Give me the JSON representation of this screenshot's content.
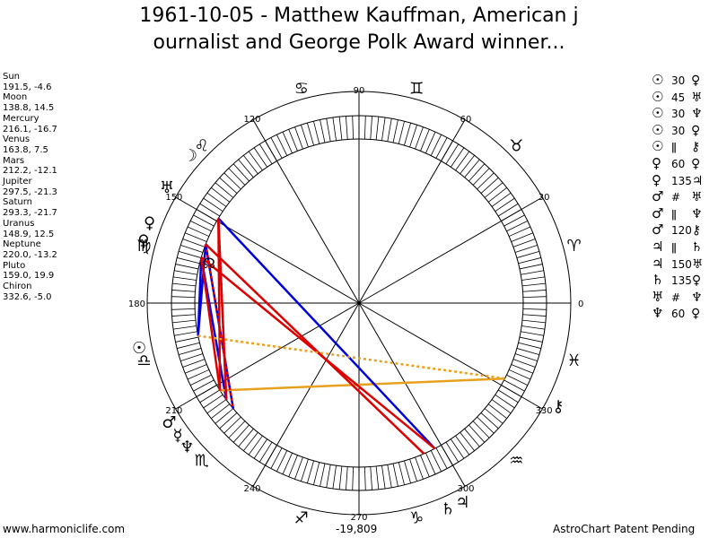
{
  "header": {
    "title_line1": "1961-10-05 - Matthew Kauffman, American j",
    "title_line2": "ournalist and George Polk Award winner..."
  },
  "planets": [
    {
      "name": "Sun",
      "coords": "191.5, -4.6"
    },
    {
      "name": "Moon",
      "coords": "138.8, 14.5"
    },
    {
      "name": "Mercury",
      "coords": "216.1, -16.7"
    },
    {
      "name": "Venus",
      "coords": "163.8, 7.5"
    },
    {
      "name": "Mars",
      "coords": "212.2, -12.1"
    },
    {
      "name": "Jupiter",
      "coords": "297.5, -21.3"
    },
    {
      "name": "Saturn",
      "coords": "293.3, -21.7"
    },
    {
      "name": "Uranus",
      "coords": "148.9, 12.5"
    },
    {
      "name": "Neptune",
      "coords": "220.0, -13.2"
    },
    {
      "name": "Pluto",
      "coords": "159.0, 19.9"
    },
    {
      "name": "Chiron",
      "coords": "332.6, -5.0"
    }
  ],
  "aspects": [
    {
      "p1": "☉",
      "aspect": "30",
      "p2": "♀"
    },
    {
      "p1": "☉",
      "aspect": "45",
      "p2": "♅"
    },
    {
      "p1": "☉",
      "aspect": "30",
      "p2": "♆"
    },
    {
      "p1": "☉",
      "aspect": "30",
      "p2": "♀"
    },
    {
      "p1": "☉",
      "aspect": "ǁ",
      "p2": "⚷"
    },
    {
      "p1": "♀",
      "aspect": "60",
      "p2": "♀"
    },
    {
      "p1": "♀",
      "aspect": "135",
      "p2": "♃"
    },
    {
      "p1": "♂",
      "aspect": "#",
      "p2": "♅"
    },
    {
      "p1": "♂",
      "aspect": "ǁ",
      "p2": "♆"
    },
    {
      "p1": "♂",
      "aspect": "120",
      "p2": "⚷"
    },
    {
      "p1": "♃",
      "aspect": "ǁ",
      "p2": "♄"
    },
    {
      "p1": "♃",
      "aspect": "150",
      "p2": "♅"
    },
    {
      "p1": "♄",
      "aspect": "135",
      "p2": "♀"
    },
    {
      "p1": "♅",
      "aspect": "#",
      "p2": "♆"
    },
    {
      "p1": "♆",
      "aspect": "60",
      "p2": "♀"
    }
  ],
  "wheel": {
    "degree_labels": [
      "0",
      "30",
      "60",
      "90",
      "120",
      "150",
      "180",
      "210",
      "240",
      "270",
      "300",
      "330"
    ],
    "zodiac_signs": [
      {
        "name": "Aries",
        "glyph": "♈"
      },
      {
        "name": "Taurus",
        "glyph": "♉"
      },
      {
        "name": "Gemini",
        "glyph": "♊"
      },
      {
        "name": "Cancer",
        "glyph": "♋"
      },
      {
        "name": "Leo",
        "glyph": "♌"
      },
      {
        "name": "Virgo",
        "glyph": "♍"
      },
      {
        "name": "Libra",
        "glyph": "♎"
      },
      {
        "name": "Scorpio",
        "glyph": "♏"
      },
      {
        "name": "Sagittarius",
        "glyph": "♐"
      },
      {
        "name": "Capricorn",
        "glyph": "♑"
      },
      {
        "name": "Aquarius",
        "glyph": "♒"
      },
      {
        "name": "Pisces",
        "glyph": "♓"
      }
    ],
    "planet_glyphs": [
      {
        "name": "Sun",
        "glyph": "☉",
        "longitude": 191.5
      },
      {
        "name": "Moon",
        "glyph": "☽",
        "longitude": 138.8
      },
      {
        "name": "Mercury",
        "glyph": "☿",
        "longitude": 216.1
      },
      {
        "name": "Venus",
        "glyph": "♀",
        "longitude": 163.8
      },
      {
        "name": "Mars",
        "glyph": "♂",
        "longitude": 212.2
      },
      {
        "name": "Jupiter",
        "glyph": "♃",
        "longitude": 297.5
      },
      {
        "name": "Saturn",
        "glyph": "♄",
        "longitude": 293.3
      },
      {
        "name": "Uranus",
        "glyph": "♅",
        "longitude": 148.9
      },
      {
        "name": "Neptune",
        "glyph": "♆",
        "longitude": 220.0
      },
      {
        "name": "Pluto",
        "glyph": "♀",
        "longitude": 159.0
      },
      {
        "name": "Chiron",
        "glyph": "⚷",
        "longitude": 332.6
      }
    ],
    "node_glyph": "☊",
    "node_longitude": 165.0,
    "aspect_lines": [
      {
        "from": 191.5,
        "to": 159.0,
        "color": "#0000dd",
        "style": "solid"
      },
      {
        "from": 191.5,
        "to": 163.8,
        "color": "#0000dd",
        "style": "solid"
      },
      {
        "from": 216.1,
        "to": 163.8,
        "color": "#0000dd",
        "style": "solid"
      },
      {
        "from": 220.0,
        "to": 159.0,
        "color": "#0000dd",
        "style": "solid"
      },
      {
        "from": 212.2,
        "to": 332.6,
        "color": "#e8a020",
        "style": "solid"
      },
      {
        "from": 212.2,
        "to": 148.9,
        "color": "#dd0000",
        "style": "solid"
      },
      {
        "from": 216.1,
        "to": 148.9,
        "color": "#dd0000",
        "style": "solid"
      },
      {
        "from": 212.2,
        "to": 163.8,
        "color": "#dd0000",
        "style": "solid"
      },
      {
        "from": 148.9,
        "to": 297.5,
        "color": "#0000dd",
        "style": "solid"
      },
      {
        "from": 159.0,
        "to": 293.3,
        "color": "#dd0000",
        "style": "solid"
      },
      {
        "from": 163.8,
        "to": 297.5,
        "color": "#dd0000",
        "style": "solid"
      },
      {
        "from": 148.9,
        "to": 216.1,
        "color": "#dd0000",
        "style": "dotted"
      },
      {
        "from": 159.0,
        "to": 220.0,
        "color": "#dd0000",
        "style": "dotted"
      },
      {
        "from": 191.5,
        "to": 332.6,
        "color": "#e8a020",
        "style": "dotted"
      }
    ]
  },
  "footer": {
    "left": "www.harmoniclife.com",
    "center": "-19,809",
    "right": "AstroChart Patent Pending"
  }
}
